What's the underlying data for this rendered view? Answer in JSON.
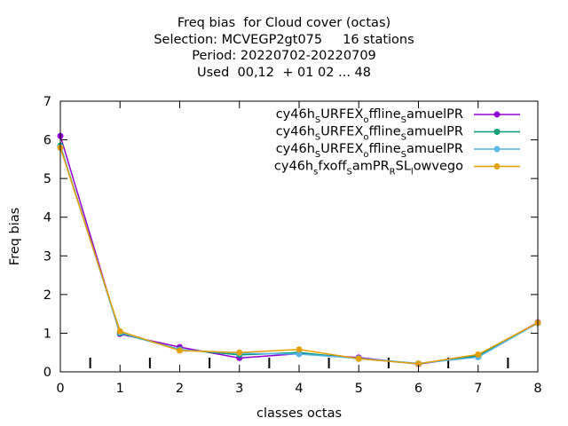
{
  "chart_data": {
    "type": "line",
    "title_lines": [
      "Freq bias  for Cloud cover (octas)",
      "Selection: MCVEGP2gt075     16 stations",
      "Period: 20220702-20220709",
      "Used  00,12  + 01 02 ... 48"
    ],
    "xlabel": "classes octas",
    "ylabel": "Freq bias",
    "xlim": [
      0,
      8
    ],
    "ylim": [
      0,
      7
    ],
    "xticks": [
      "0",
      "1",
      "2",
      "3",
      "4",
      "5",
      "6",
      "7",
      "8"
    ],
    "yticks": [
      "0",
      "1",
      "2",
      "3",
      "4",
      "5",
      "6",
      "7"
    ],
    "legend_position": "top-right",
    "x": [
      0,
      1,
      2,
      3,
      4,
      5,
      6,
      7,
      8
    ],
    "series": [
      {
        "name": "cy46h_SURFEX_offline_samuelPR",
        "legend_parts": [
          [
            "cy46h",
            ""
          ],
          [
            "S",
            "sub"
          ],
          [
            "URFEX",
            ""
          ],
          [
            "o",
            "sub"
          ],
          [
            "ffline",
            ""
          ],
          [
            "S",
            "sub"
          ],
          [
            "amuelPR",
            ""
          ]
        ],
        "color": "#9400d3",
        "values": [
          6.1,
          0.98,
          0.64,
          0.36,
          0.47,
          0.37,
          0.2,
          0.42,
          1.28
        ]
      },
      {
        "name": "cy46h_SURFEX_offline_samuelPR",
        "legend_parts": [
          [
            "cy46h",
            ""
          ],
          [
            "S",
            "sub"
          ],
          [
            "URFEX",
            ""
          ],
          [
            "o",
            "sub"
          ],
          [
            "ffline",
            ""
          ],
          [
            "S",
            "sub"
          ],
          [
            "amuelPR",
            ""
          ]
        ],
        "color": "#009e73",
        "values": [
          5.85,
          1.0,
          0.58,
          0.44,
          0.5,
          0.34,
          0.21,
          0.41,
          1.27
        ]
      },
      {
        "name": "cy46h_SURFEX_offline_samuelPR",
        "legend_parts": [
          [
            "cy46h",
            ""
          ],
          [
            "S",
            "sub"
          ],
          [
            "URFEX",
            ""
          ],
          [
            "o",
            "sub"
          ],
          [
            "ffline",
            ""
          ],
          [
            "S",
            "sub"
          ],
          [
            "amuelPR",
            ""
          ]
        ],
        "color": "#56b4e9",
        "values": [
          5.82,
          1.02,
          0.57,
          0.48,
          0.46,
          0.35,
          0.22,
          0.38,
          1.26
        ]
      },
      {
        "name": "cy46h_sfxoff_samPR_RSL_lowvego",
        "legend_parts": [
          [
            "cy46h",
            ""
          ],
          [
            "s",
            "sub"
          ],
          [
            "fxoff",
            ""
          ],
          [
            "S",
            "sub"
          ],
          [
            "amPR",
            ""
          ],
          [
            "R",
            "sub"
          ],
          [
            "SL",
            ""
          ],
          [
            "l",
            "sub"
          ],
          [
            "owvego",
            ""
          ]
        ],
        "color": "#e69f00",
        "values": [
          5.8,
          1.05,
          0.55,
          0.5,
          0.58,
          0.34,
          0.21,
          0.45,
          1.27
        ]
      }
    ]
  }
}
